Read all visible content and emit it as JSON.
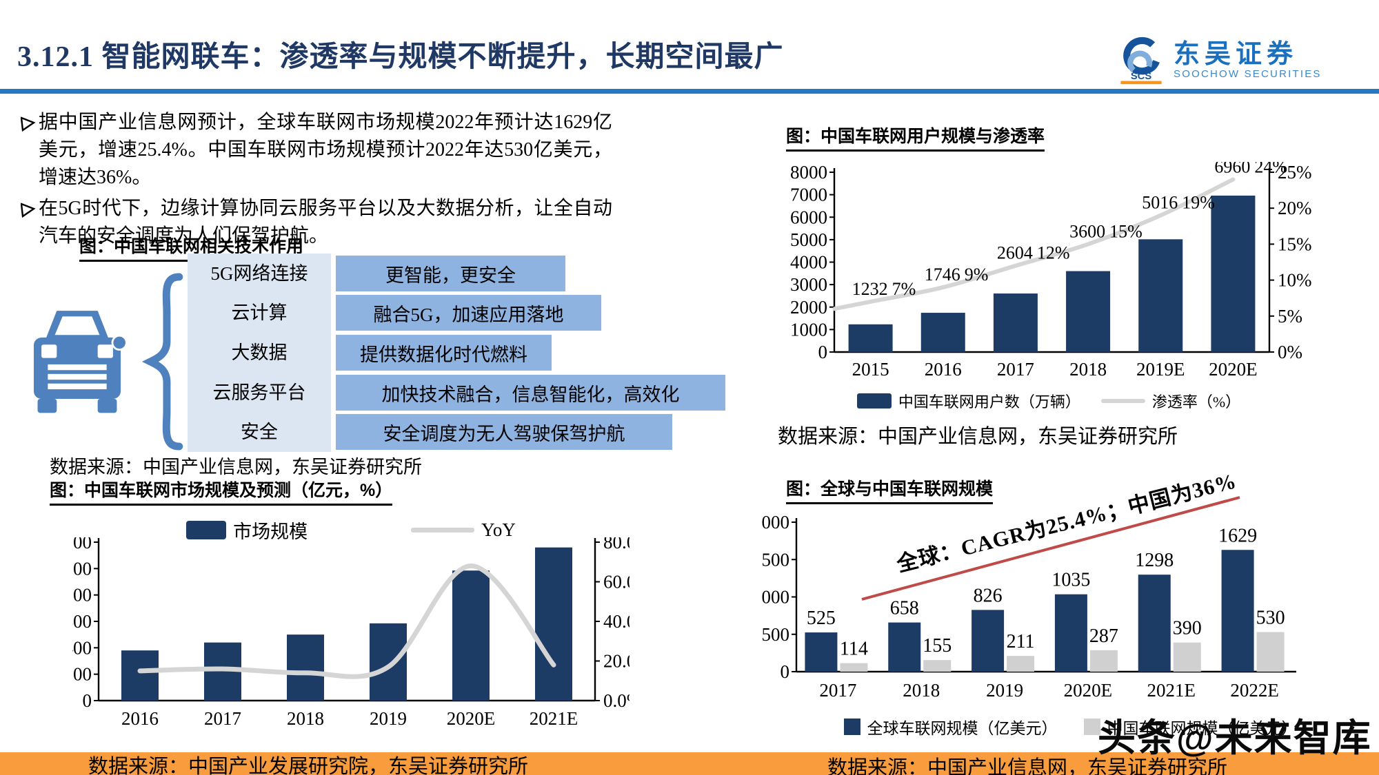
{
  "header": {
    "title": "3.12.1 智能网联车：渗透率与规模不断提升，长期空间最广",
    "logo": {
      "cn": "东吴证券",
      "en": "SOOCHOW SECURITIES",
      "abbr": "SCS"
    }
  },
  "bullets": [
    "据中国产业信息网预计，全球车联网市场规模2022年预计达1629亿美元，增速25.4%。中国车联网市场规模预计2022年达530亿美元，增速达36%。",
    "在5G时代下，边缘计算协同云服务平台以及大数据分析，让全自动汽车的安全调度为人们保驾护航。"
  ],
  "tech_figure": {
    "title": "图：中国车联网相关技术作用",
    "source": "数据来源：中国产业信息网，东吴证券研究所",
    "rows": [
      {
        "tech": "5G网络连接",
        "effect": "更智能，更安全"
      },
      {
        "tech": "云计算",
        "effect": "融合5G，加速应用落地"
      },
      {
        "tech": "大数据",
        "effect": "提供数据化时代燃料"
      },
      {
        "tech": "云服务平台",
        "effect": "加快技术融合，信息智能化，高效化"
      },
      {
        "tech": "安全",
        "effect": "安全调度为无人驾驶保驾护航"
      }
    ]
  },
  "watermark": "头条@未来智库",
  "colors": {
    "navy": "#1c3c66",
    "gray_bar": "#d0d0d0",
    "gray_line": "#d5d5d5",
    "red": "#bf4a47",
    "accent_blue": "#2579c2",
    "orange": "#f99c3d",
    "light_box": "#dce6f2",
    "mid_box": "#8fb3e0",
    "steel": "#4e81bd",
    "title_navy": "#1f3864"
  },
  "chart_data": [
    {
      "id": "users",
      "type": "bar",
      "title": "图：中国车联网用户规模与渗透率",
      "categories": [
        "2015",
        "2016",
        "2017",
        "2018",
        "2019E",
        "2020E"
      ],
      "series": [
        {
          "name": "中国车联网用户数（万辆）",
          "type": "bar",
          "values": [
            1232,
            1746,
            2604,
            3600,
            5016,
            6960
          ]
        },
        {
          "name": "渗透率（%）",
          "type": "line",
          "values": [
            7,
            9,
            12,
            15,
            19,
            24
          ]
        }
      ],
      "ylabel_left": {
        "min": 0,
        "max": 8000,
        "step": 1000
      },
      "ylabel_right": {
        "min": 0,
        "max": 25,
        "step": 5,
        "suffix": "%",
        "decimals": 0
      },
      "legend_position": "bottom",
      "grid": false,
      "source": "数据来源：中国产业信息网，东吴证券研究所"
    },
    {
      "id": "market",
      "type": "bar",
      "title": "图：中国车联网市场规模及预测（亿元，%）",
      "categories": [
        "2016",
        "2017",
        "2018",
        "2019",
        "2020E",
        "2021E"
      ],
      "series": [
        {
          "name": "市场规模",
          "type": "bar",
          "values": [
            380,
            440,
            500,
            585,
            985,
            1160
          ]
        },
        {
          "name": "YoY",
          "type": "line",
          "values": [
            15,
            16,
            14,
            17,
            68,
            18
          ]
        }
      ],
      "ylabel_left": {
        "min": 0,
        "max": 1200,
        "step": 200
      },
      "ylabel_right": {
        "min": 0,
        "max": 80,
        "step": 20,
        "suffix": "%",
        "decimals": 1
      },
      "legend_position": "top",
      "grid": false,
      "source": "数据来源：中国产业发展研究院，东吴证券研究所"
    },
    {
      "id": "global",
      "type": "bar",
      "title": "图：全球与中国车联网规模",
      "categories": [
        "2017",
        "2018",
        "2019",
        "2020E",
        "2021E",
        "2022E"
      ],
      "series": [
        {
          "name": "全球车联网规模（亿美元）",
          "type": "bar",
          "values": [
            525,
            658,
            826,
            1035,
            1298,
            1629
          ]
        },
        {
          "name": "中国车联网规模（亿美元）",
          "type": "bar",
          "values": [
            114,
            155,
            211,
            287,
            390,
            530
          ]
        }
      ],
      "ylabel_left": {
        "min": 0,
        "max": 2000,
        "step": 500
      },
      "annotation": "全球：CAGR为25.4%；中国为36%",
      "legend_position": "bottom",
      "grid": false,
      "source": "数据来源：中国产业信息网，东吴证券研究所"
    }
  ]
}
